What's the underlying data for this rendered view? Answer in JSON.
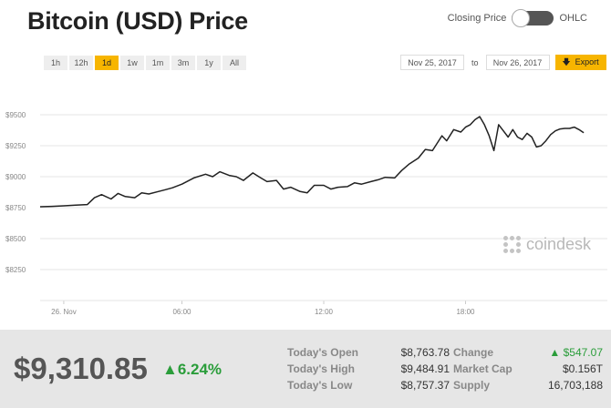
{
  "title": "Bitcoin (USD) Price",
  "toggle": {
    "left_label": "Closing Price",
    "right_label": "OHLC"
  },
  "ranges": [
    "1h",
    "12h",
    "1d",
    "1w",
    "1m",
    "3m",
    "1y",
    "All"
  ],
  "active_range": "1d",
  "date_from": "Nov 25, 2017",
  "date_to": "Nov 26, 2017",
  "date_separator": "to",
  "export_label": "Export",
  "watermark": "coindesk",
  "colors": {
    "accent": "#f7b500",
    "positive": "#2a9d3a",
    "line": "#222222"
  },
  "chart_data": {
    "type": "line",
    "y_ticks": [
      "$9500",
      "$9250",
      "$9000",
      "$8750",
      "$8500",
      "$8250"
    ],
    "x_ticks": [
      "26. Nov",
      "06:00",
      "12:00",
      "18:00"
    ],
    "ylim": [
      8000,
      9750
    ],
    "xlim": [
      0,
      24
    ],
    "grid": true,
    "x": [
      0,
      0.5,
      1,
      1.5,
      2,
      2.3,
      2.6,
      3,
      3.3,
      3.6,
      4,
      4.3,
      4.6,
      5,
      5.3,
      5.6,
      6,
      6.5,
      7,
      7.3,
      7.6,
      8,
      8.3,
      8.6,
      9,
      9.3,
      9.6,
      10,
      10.3,
      10.6,
      11,
      11.3,
      11.6,
      12,
      12.3,
      12.6,
      13,
      13.3,
      13.6,
      14,
      14.3,
      14.6,
      15,
      15.3,
      15.6,
      16,
      16.3,
      16.6,
      17,
      17.2,
      17.5,
      17.8,
      18,
      18.2,
      18.4,
      18.6,
      18.8,
      19,
      19.2,
      19.4,
      19.6,
      19.8,
      20,
      20.2,
      20.4,
      20.6,
      20.8,
      21,
      21.2,
      21.4,
      21.6,
      21.8,
      22,
      22.2,
      22.4,
      22.6,
      22.8,
      23
    ],
    "y": [
      8757,
      8760,
      8765,
      8770,
      8775,
      8830,
      8855,
      8820,
      8865,
      8840,
      8830,
      8870,
      8860,
      8880,
      8895,
      8910,
      8940,
      8990,
      9020,
      9000,
      9040,
      9010,
      9000,
      8970,
      9030,
      8995,
      8960,
      8970,
      8900,
      8915,
      8880,
      8870,
      8930,
      8930,
      8900,
      8915,
      8920,
      8950,
      8940,
      8960,
      8975,
      8995,
      8990,
      9050,
      9100,
      9150,
      9220,
      9210,
      9330,
      9290,
      9380,
      9360,
      9400,
      9420,
      9460,
      9485,
      9420,
      9330,
      9210,
      9420,
      9370,
      9320,
      9380,
      9320,
      9300,
      9350,
      9320,
      9240,
      9250,
      9290,
      9340,
      9370,
      9385,
      9390,
      9390,
      9400,
      9380,
      9355
    ]
  },
  "footer": {
    "price": "$9,310.85",
    "change_pct": "6.24%",
    "open_label": "Today's Open",
    "open_value": "$8,763.78",
    "high_label": "Today's High",
    "high_value": "$9,484.91",
    "low_label": "Today's Low",
    "low_value": "$8,757.37",
    "change_label": "Change",
    "change_value": "$547.07",
    "mcap_label": "Market Cap",
    "mcap_value": "$0.156T",
    "supply_label": "Supply",
    "supply_value": "16,703,188"
  }
}
